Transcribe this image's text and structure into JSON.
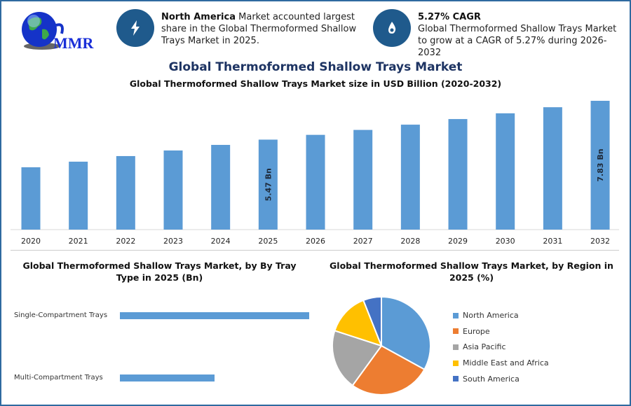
{
  "logo": {
    "text": "MMR"
  },
  "header": {
    "card1": {
      "bold": "North America",
      "text": " Market accounted largest share in the Global Thermoformed Shallow Trays Market in 2025.",
      "icon": "lightning-icon"
    },
    "card2": {
      "bold": "5.27% CAGR",
      "text": "Global Thermoformed Shallow Trays Market to grow at a CAGR of 5.27% during 2026-2032",
      "icon": "drop-icon"
    }
  },
  "colors": {
    "bar": "#5b9bd5",
    "border": "#2f6aa0",
    "title": "#1e3463"
  },
  "chart_data": [
    {
      "type": "bar",
      "title": "Global Thermoformed Shallow Trays Market",
      "subtitle": "Global Thermoformed Shallow Trays Market size in USD Billion (2020-2032)",
      "categories": [
        "2020",
        "2021",
        "2022",
        "2023",
        "2024",
        "2025",
        "2026",
        "2027",
        "2028",
        "2029",
        "2030",
        "2031",
        "2032"
      ],
      "values": [
        3.79,
        4.13,
        4.47,
        4.81,
        5.15,
        5.47,
        5.76,
        6.06,
        6.38,
        6.72,
        7.07,
        7.44,
        7.83
      ],
      "data_labels": {
        "2025": "5.47 Bn",
        "2032": "7.83 Bn"
      },
      "ylim": [
        0,
        7.83
      ],
      "xlabel": "",
      "ylabel": ""
    },
    {
      "type": "bar",
      "orientation": "horizontal",
      "title": "Global Thermoformed Shallow Trays Market, by By Tray Type in 2025 (Bn)",
      "categories": [
        "Single-Compartment Trays",
        "Multi-Compartment Trays"
      ],
      "values": [
        1.0,
        0.5
      ],
      "xlim": [
        0,
        1.0
      ]
    },
    {
      "type": "pie",
      "title": "Global Thermoformed Shallow Trays Market, by Region in 2025 (%)",
      "labels": [
        "North America",
        "Europe",
        "Asia Pacific",
        "Middle East and Africa",
        "South America"
      ],
      "values": [
        33,
        27,
        20,
        14,
        6
      ],
      "colors": [
        "#5b9bd5",
        "#ed7d31",
        "#a5a5a5",
        "#ffc000",
        "#4472c4"
      ],
      "legend": "right"
    }
  ]
}
